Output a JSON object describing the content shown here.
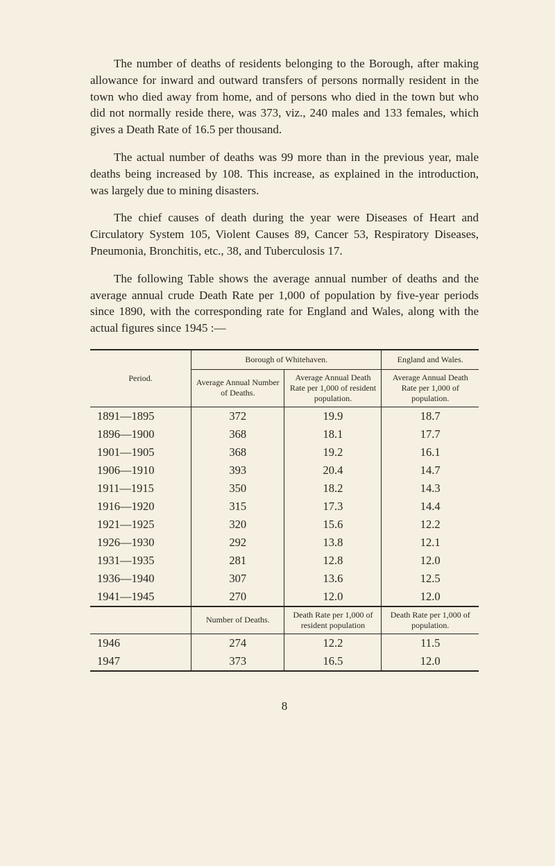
{
  "paragraphs": {
    "p1": "The number of deaths of residents belonging to the Borough, after making allowance for inward and outward transfers of persons normally resident in the town who died away from home, and of persons who died in the town but who did not normally reside there, was 373, viz., 240 males and 133 females, which gives a Death Rate of 16.5 per thousand.",
    "p2": "The actual number of deaths was 99 more than in the previous year, male deaths being increased by 108. This increase, as explained in the introduction, was largely due to mining disasters.",
    "p3": "The chief causes of death during the year were Diseases of Heart and Circulatory System 105, Violent Causes 89, Cancer 53, Respiratory Diseases, Pneumonia, Bronchitis, etc., 38, and Tuberculosis 17.",
    "p4": "The following Table shows the average annual number of deaths and the average annual crude Death Rate per 1,000 of population by five-year periods since 1890, with the corres­ponding rate for England and Wales, along with the actual figures since 1945 :—"
  },
  "table": {
    "headers": {
      "period": "Period.",
      "borough": "Borough of Whitehaven.",
      "england": "England and Wales.",
      "avg_deaths": "Average Annual Number of Deaths.",
      "avg_rate": "Average Annual Death Rate per 1,000 of resident population.",
      "eng_rate": "Average Annual Death Rate per 1,000 of population.",
      "num_deaths": "Number of Deaths.",
      "rate_resident": "Death Rate per 1,000 of resident population",
      "rate_pop": "Death Rate per 1,000 of population."
    },
    "rows": [
      {
        "period": "1891—1895",
        "deaths": "372",
        "rate": "19.9",
        "eng": "18.7"
      },
      {
        "period": "1896—1900",
        "deaths": "368",
        "rate": "18.1",
        "eng": "17.7"
      },
      {
        "period": "1901—1905",
        "deaths": "368",
        "rate": "19.2",
        "eng": "16.1"
      },
      {
        "period": "1906—1910",
        "deaths": "393",
        "rate": "20.4",
        "eng": "14.7"
      },
      {
        "period": "1911—1915",
        "deaths": "350",
        "rate": "18.2",
        "eng": "14.3"
      },
      {
        "period": "1916—1920",
        "deaths": "315",
        "rate": "17.3",
        "eng": "14.4"
      },
      {
        "period": "1921—1925",
        "deaths": "320",
        "rate": "15.6",
        "eng": "12.2"
      },
      {
        "period": "1926—1930",
        "deaths": "292",
        "rate": "13.8",
        "eng": "12.1"
      },
      {
        "period": "1931—1935",
        "deaths": "281",
        "rate": "12.8",
        "eng": "12.0"
      },
      {
        "period": "1936—1940",
        "deaths": "307",
        "rate": "13.6",
        "eng": "12.5"
      },
      {
        "period": "1941—1945",
        "deaths": "270",
        "rate": "12.0",
        "eng": "12.0"
      }
    ],
    "rows2": [
      {
        "period": "1946",
        "deaths": "274",
        "rate": "12.2",
        "eng": "11.5"
      },
      {
        "period": "1947",
        "deaths": "373",
        "rate": "16.5",
        "eng": "12.0"
      }
    ]
  },
  "page_number": "8"
}
